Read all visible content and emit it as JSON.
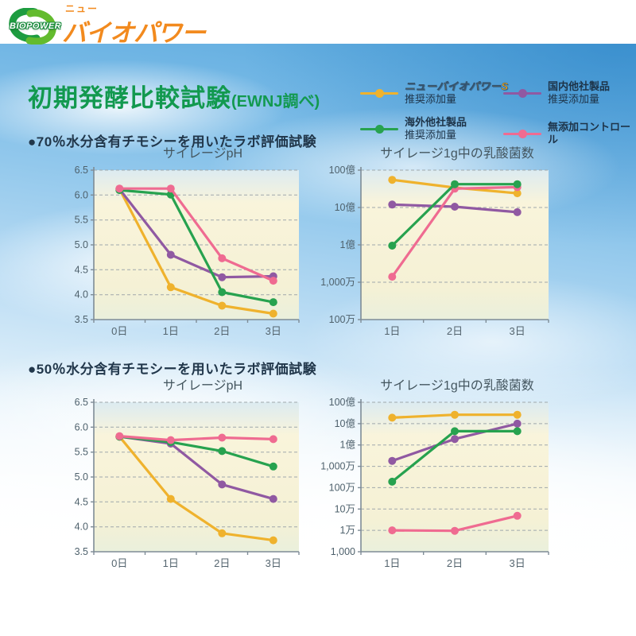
{
  "header": {
    "logo_badge": "BIOPOWER",
    "logo_small_text": "ニュー",
    "logo_wordmark": "バイオパワー"
  },
  "title": {
    "main": "初期発酵比較試験",
    "note": "(EWNJ調べ)"
  },
  "sections": [
    {
      "heading": "●70％水分含有チモシーを用いたラボ評価試験"
    },
    {
      "heading": "●50％水分含有チモシーを用いたラボ評価試験"
    }
  ],
  "legend": {
    "items": [
      {
        "name": "ニューバイオパワーS",
        "sub": "推奨添加量",
        "color_key": "yellow"
      },
      {
        "name": "国内他社製品",
        "sub": "推奨添加量",
        "color_key": "purple"
      },
      {
        "name": "海外他社製品",
        "sub": "推奨添加量",
        "color_key": "green"
      },
      {
        "name": "無添加コントロール",
        "sub": "",
        "color_key": "pink"
      }
    ]
  },
  "colors": {
    "yellow": "#EFB22D",
    "purple": "#9059A2",
    "green": "#27A24F",
    "pink": "#EF6B91",
    "title_green": "#12994F"
  },
  "chart_data": [
    {
      "type": "line",
      "title": "サイレージpH",
      "section": "70％水分含有チモシー",
      "x_categories": [
        "0日",
        "1日",
        "2日",
        "3日"
      ],
      "y_scale": "linear",
      "y_min": 3.5,
      "y_max": 6.5,
      "grid": true,
      "y_ticks": [
        {
          "v": 6.5,
          "label": "6.5"
        },
        {
          "v": 6.0,
          "label": "6.0"
        },
        {
          "v": 5.5,
          "label": "5.5"
        },
        {
          "v": 5.0,
          "label": "5.0"
        },
        {
          "v": 4.5,
          "label": "4.5"
        },
        {
          "v": 4.0,
          "label": "4.0"
        },
        {
          "v": 3.5,
          "label": "3.5"
        }
      ],
      "series": [
        {
          "name": "ニューバイオパワーS 推奨添加量",
          "color": "yellow",
          "values": [
            6.12,
            4.15,
            3.78,
            3.62
          ]
        },
        {
          "name": "国内他社製品 推奨添加量",
          "color": "purple",
          "values": [
            6.12,
            4.8,
            4.35,
            4.37
          ]
        },
        {
          "name": "海外他社製品 推奨添加量",
          "color": "green",
          "values": [
            6.1,
            6.01,
            4.05,
            3.85
          ]
        },
        {
          "name": "無添加コントロール",
          "color": "pink",
          "values": [
            6.13,
            6.13,
            4.73,
            4.28
          ]
        }
      ]
    },
    {
      "type": "line",
      "title": "サイレージ1g中の乳酸菌数",
      "section": "70％水分含有チモシー",
      "x_categories": [
        "1日",
        "2日",
        "3日"
      ],
      "y_scale": "log",
      "y_min": 1000000,
      "y_max": 10000000000,
      "grid": true,
      "y_ticks": [
        {
          "v": 10000000000,
          "label": "100億"
        },
        {
          "v": 1000000000,
          "label": "10億"
        },
        {
          "v": 100000000,
          "label": "1億"
        },
        {
          "v": 10000000,
          "label": "1,000万"
        },
        {
          "v": 1000000,
          "label": "100万"
        }
      ],
      "series": [
        {
          "name": "国内他社製品 推奨添加量",
          "color": "purple",
          "values": [
            1200000000.0,
            1050000000.0,
            750000000.0
          ]
        },
        {
          "name": "ニューバイオパワーS 推奨添加量",
          "color": "yellow",
          "values": [
            5500000000.0,
            3400000000.0,
            2400000000.0
          ]
        },
        {
          "name": "無添加コントロール",
          "color": "pink",
          "values": [
            14000000.0,
            3200000000.0,
            3500000000.0
          ]
        },
        {
          "name": "海外他社製品 推奨添加量",
          "color": "green",
          "values": [
            95000000.0,
            4200000000.0,
            4200000000.0
          ]
        }
      ]
    },
    {
      "type": "line",
      "title": "サイレージpH",
      "section": "50％水分含有チモシー",
      "x_categories": [
        "0日",
        "1日",
        "2日",
        "3日"
      ],
      "y_scale": "linear",
      "y_min": 3.5,
      "y_max": 6.5,
      "grid": true,
      "y_ticks": [
        {
          "v": 6.5,
          "label": "6.5"
        },
        {
          "v": 6.0,
          "label": "6.0"
        },
        {
          "v": 5.5,
          "label": "5.5"
        },
        {
          "v": 5.0,
          "label": "5.0"
        },
        {
          "v": 4.5,
          "label": "4.5"
        },
        {
          "v": 4.0,
          "label": "4.0"
        },
        {
          "v": 3.5,
          "label": "3.5"
        }
      ],
      "series": [
        {
          "name": "ニューバイオパワーS 推奨添加量",
          "color": "yellow",
          "values": [
            5.81,
            4.56,
            3.87,
            3.73
          ]
        },
        {
          "name": "国内他社製品 推奨添加量",
          "color": "purple",
          "values": [
            5.81,
            5.67,
            4.85,
            4.56
          ]
        },
        {
          "name": "海外他社製品 推奨添加量",
          "color": "green",
          "values": [
            5.81,
            5.7,
            5.52,
            5.21
          ]
        },
        {
          "name": "無添加コントロール",
          "color": "pink",
          "values": [
            5.82,
            5.74,
            5.79,
            5.76
          ]
        }
      ]
    },
    {
      "type": "line",
      "title": "サイレージ1g中の乳酸菌数",
      "section": "50％水分含有チモシー",
      "x_categories": [
        "1日",
        "2日",
        "3日"
      ],
      "y_scale": "log",
      "y_min": 1000,
      "y_max": 10000000000,
      "grid": true,
      "y_ticks": [
        {
          "v": 10000000000,
          "label": "100億"
        },
        {
          "v": 1000000000,
          "label": "10億"
        },
        {
          "v": 100000000,
          "label": "1億"
        },
        {
          "v": 10000000,
          "label": "1,000万"
        },
        {
          "v": 1000000,
          "label": "100万"
        },
        {
          "v": 100000,
          "label": "10万"
        },
        {
          "v": 10000,
          "label": "1万"
        },
        {
          "v": 1000,
          "label": "1,000"
        }
      ],
      "series": [
        {
          "name": "国内他社製品 推奨添加量",
          "color": "purple",
          "values": [
            18000000.0,
            190000000.0,
            1000000000.0
          ]
        },
        {
          "name": "海外他社製品 推奨添加量",
          "color": "green",
          "values": [
            1900000.0,
            440000000.0,
            440000000.0
          ]
        },
        {
          "name": "無添加コントロール",
          "color": "pink",
          "values": [
            10000.0,
            9500.0,
            48000.0
          ]
        },
        {
          "name": "ニューバイオパワーS 推奨添加量",
          "color": "yellow",
          "values": [
            1900000000.0,
            2600000000.0,
            2600000000.0
          ]
        }
      ]
    }
  ]
}
